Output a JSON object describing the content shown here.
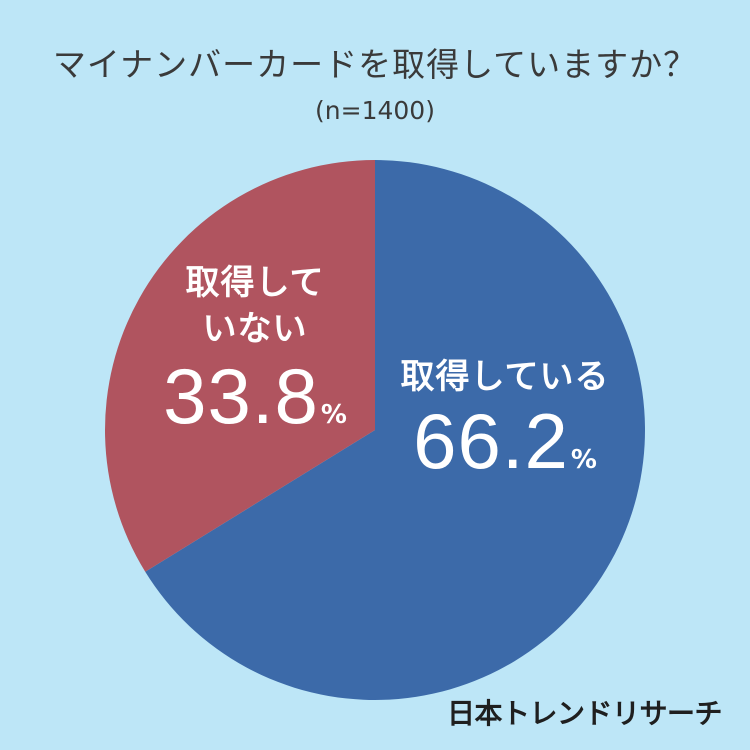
{
  "header": {
    "title": "マイナンバーカードを取得していますか？",
    "subtitle": "(n=1400)"
  },
  "chart_data": {
    "type": "pie",
    "title": "マイナンバーカードを取得していますか？",
    "n_label": "(n=1400)",
    "categories": [
      "取得している",
      "取得していない"
    ],
    "values": [
      66.2,
      33.8
    ],
    "colors": [
      "#3c6aa9",
      "#b0545f"
    ],
    "start": "12 o'clock",
    "direction": "clockwise",
    "labels": {
      "yes": {
        "name": "取得している",
        "value": "66.2",
        "unit": "%"
      },
      "not_line1": "取得して",
      "not_line2": "いない",
      "not": {
        "value": "33.8",
        "unit": "%"
      }
    }
  },
  "branding": {
    "logo_text": "日本トレンドリサーチ"
  },
  "colors": {
    "background": "#bde6f7"
  }
}
